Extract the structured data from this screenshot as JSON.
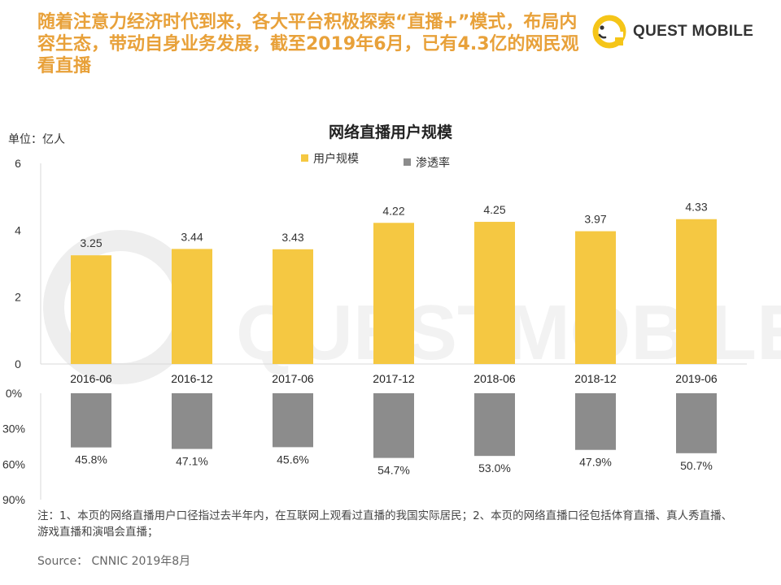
{
  "headline": "随着注意力经济时代到来，各大平台积极探索“直播+”模式，布局内容生态，带动自身业务发展，截至2019年6月，已有4.3亿的网民观看直播",
  "brand": {
    "logo_text": "QUEST MOBILE",
    "watermark_text": "QUESTMOBILE"
  },
  "colors": {
    "headline": "#e8a13a",
    "bar_primary": "#f5c842",
    "bar_secondary": "#8c8c8c"
  },
  "chart_data": {
    "type": "bar",
    "title": "网络直播用户规模",
    "unit_label": "单位：亿人",
    "categories": [
      "2016-06",
      "2016-12",
      "2017-06",
      "2017-12",
      "2018-06",
      "2018-12",
      "2019-06"
    ],
    "series": [
      {
        "name": "用户规模",
        "values": [
          3.25,
          3.44,
          3.43,
          4.22,
          4.25,
          3.97,
          4.33
        ],
        "labels": [
          "3.25",
          "3.44",
          "3.43",
          "4.22",
          "4.25",
          "3.97",
          "4.33"
        ]
      },
      {
        "name": "渗透率",
        "values": [
          45.8,
          47.1,
          45.6,
          54.7,
          53.0,
          47.9,
          50.7
        ],
        "labels": [
          "45.8%",
          "47.1%",
          "45.6%",
          "54.7%",
          "53.0%",
          "47.9%",
          "50.7%"
        ]
      }
    ],
    "upper_axis": {
      "ylim": [
        0,
        6
      ],
      "ticks": [
        "0",
        "2",
        "4",
        "6"
      ],
      "tick_values": [
        0,
        2,
        4,
        6
      ]
    },
    "lower_axis": {
      "ylim": [
        0,
        90
      ],
      "inverted": true,
      "ticks": [
        "0%",
        "30%",
        "60%",
        "90%"
      ],
      "tick_values": [
        0,
        30,
        60,
        90
      ]
    },
    "legend_position": "top-center",
    "grid": false
  },
  "footnote": "注：1、本页的网络直播用户口径指过去半年内，在互联网上观看过直播的我国实际居民；2、本页的网络直播口径包括体育直播、真人秀直播、游戏直播和演唱会直播；",
  "source": "Source： CNNIC 2019年8月"
}
